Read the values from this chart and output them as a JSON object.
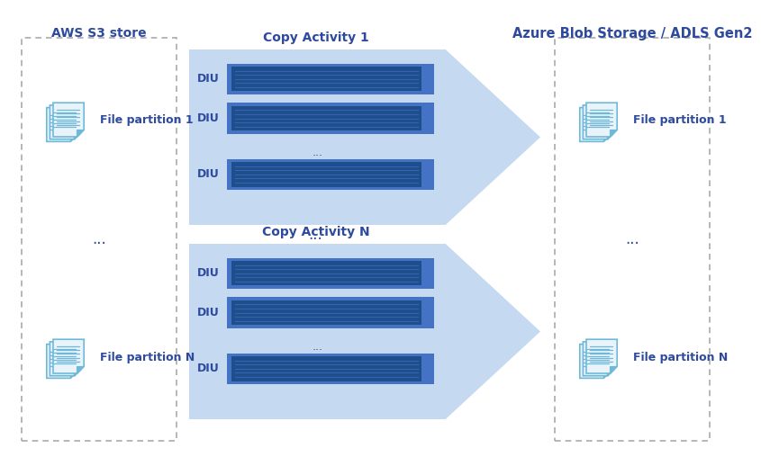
{
  "bg_color": "#ffffff",
  "text_color": "#2E4A9E",
  "dark_blue": "#1F4E8C",
  "mid_blue": "#4472C4",
  "light_blue": "#C5D9F1",
  "dashed_border_color": "#AAAAAA",
  "aws_title": "AWS S3 store",
  "azure_title": "Azure Blob Storage / ADLS Gen2",
  "copy1_title": "Copy Activity 1",
  "copyN_title": "Copy Activity N",
  "diu_label": "DIU",
  "dots": "...",
  "file_partition_1": "File partition 1",
  "file_partition_N": "File partition N",
  "icon_color_dark": "#4472C4",
  "icon_color_mid": "#70B8D8",
  "icon_color_light": "#A8D4E8",
  "icon_bg": "#E8F4FA"
}
